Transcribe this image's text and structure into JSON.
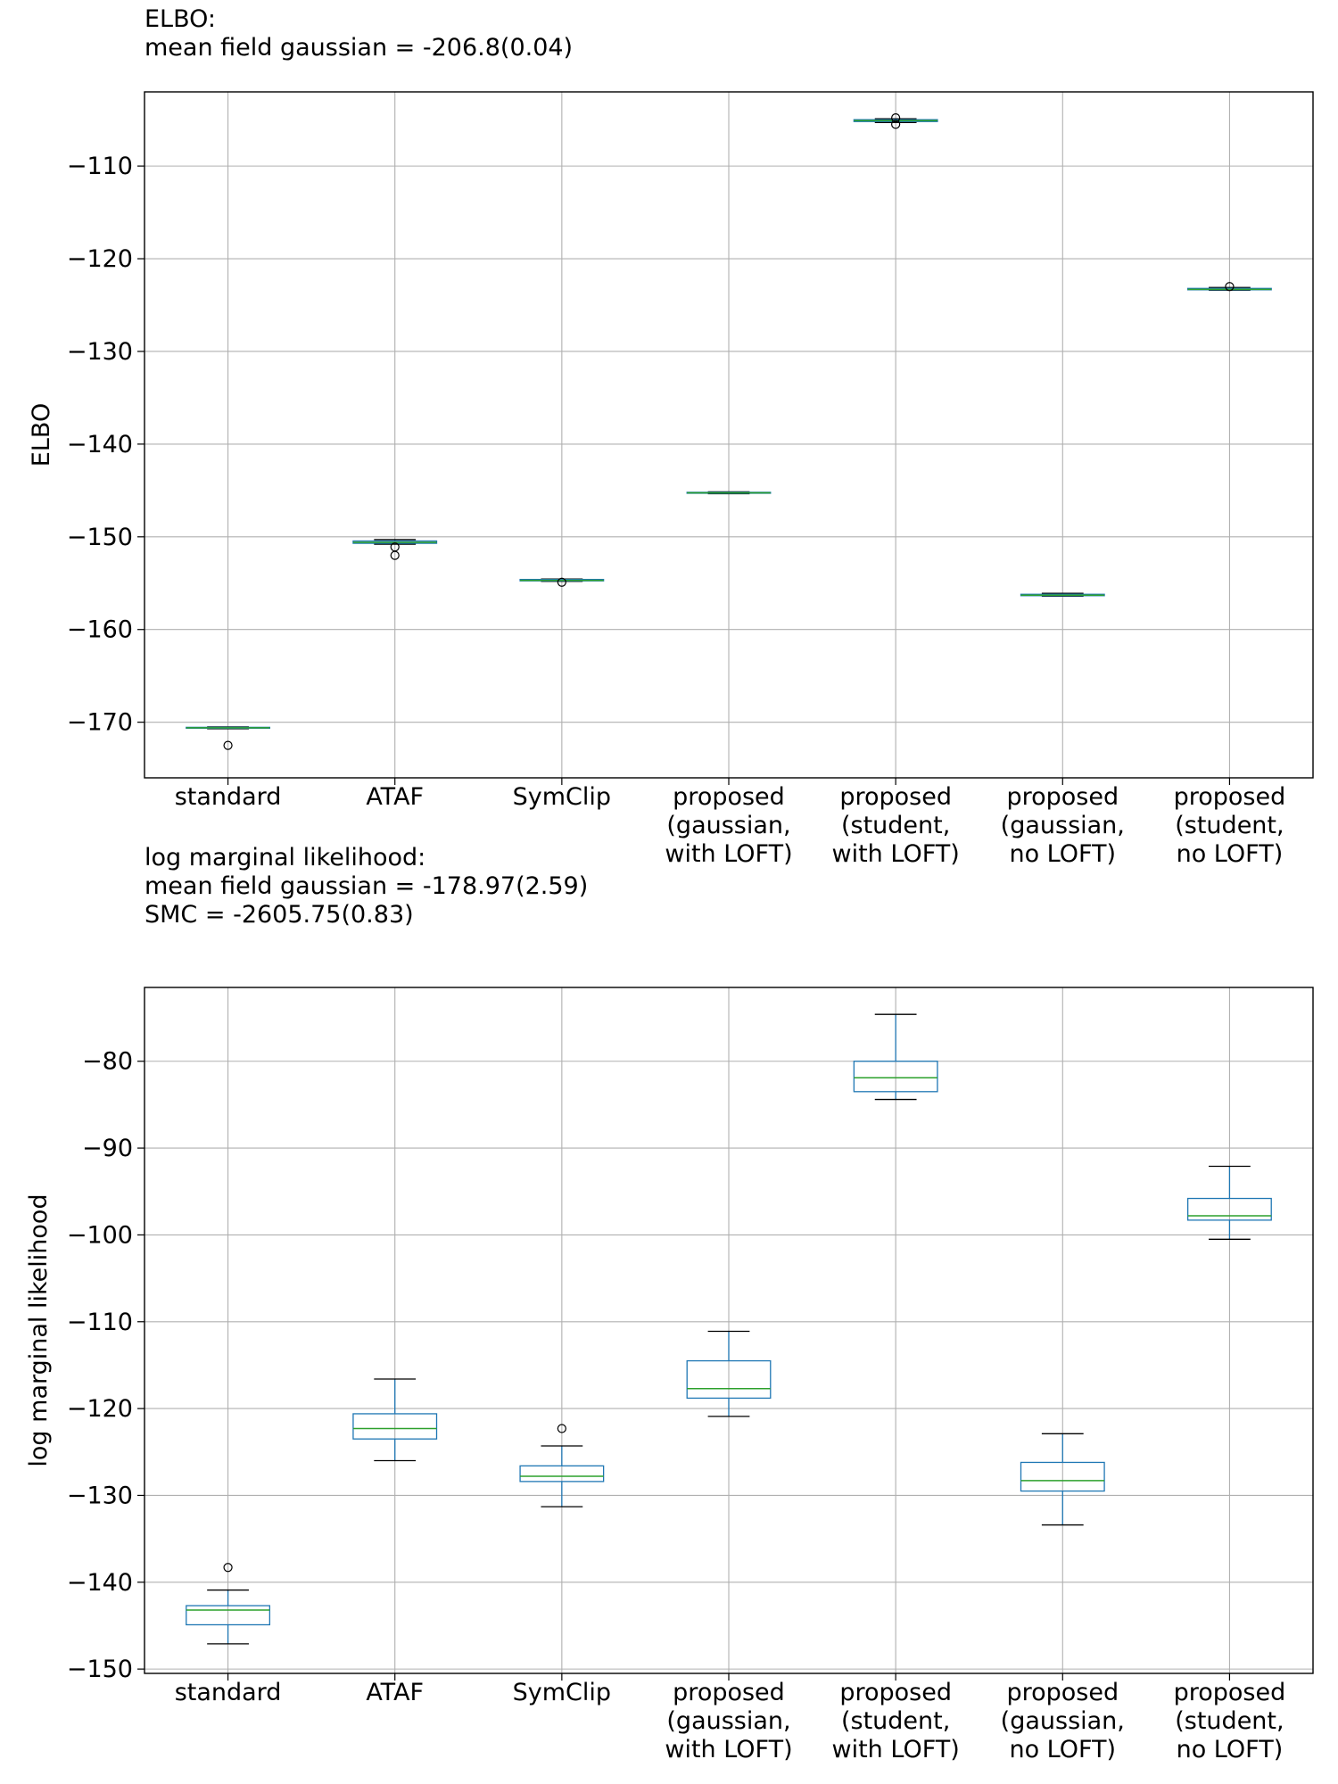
{
  "chart_data": [
    {
      "type": "box",
      "title_lines": [
        "ELBO:",
        "mean field gaussian = -206.8(0.04)"
      ],
      "xlabel": "",
      "ylabel": "ELBO",
      "ylim": [
        -176,
        -102
      ],
      "yticks": [
        -110,
        -120,
        -130,
        -140,
        -150,
        -160,
        -170
      ],
      "ytick_labels": [
        "−110",
        "−120",
        "−130",
        "−140",
        "−150",
        "−160",
        "−170"
      ],
      "categories": [
        [
          "standard"
        ],
        [
          "ATAF"
        ],
        [
          "SymClip"
        ],
        [
          "proposed",
          "(gaussian,",
          "with LOFT)"
        ],
        [
          "proposed",
          "(student,",
          "with LOFT)"
        ],
        [
          "proposed",
          "(gaussian,",
          "no LOFT)"
        ],
        [
          "proposed",
          "(student,",
          "no LOFT)"
        ]
      ],
      "boxes": [
        {
          "whislo": -170.7,
          "q1": -170.65,
          "med": -170.6,
          "q3": -170.55,
          "whishi": -170.5,
          "fliers": [
            -172.5
          ]
        },
        {
          "whislo": -150.8,
          "q1": -150.7,
          "med": -150.6,
          "q3": -150.45,
          "whishi": -150.3,
          "fliers": [
            -151.1,
            -152.0
          ]
        },
        {
          "whislo": -154.8,
          "q1": -154.75,
          "med": -154.7,
          "q3": -154.6,
          "whishi": -154.55,
          "fliers": [
            -154.9
          ]
        },
        {
          "whislo": -145.35,
          "q1": -145.3,
          "med": -145.25,
          "q3": -145.2,
          "whishi": -145.15,
          "fliers": []
        },
        {
          "whislo": -105.3,
          "q1": -105.2,
          "med": -105.1,
          "q3": -105.0,
          "whishi": -104.9,
          "fliers": [
            -104.8,
            -105.5
          ]
        },
        {
          "whislo": -156.4,
          "q1": -156.35,
          "med": -156.3,
          "q3": -156.2,
          "whishi": -156.1,
          "fliers": []
        },
        {
          "whislo": -123.4,
          "q1": -123.35,
          "med": -123.3,
          "q3": -123.2,
          "whishi": -123.1,
          "fliers": [
            -123.0
          ]
        }
      ]
    },
    {
      "type": "box",
      "title_lines": [
        "log marginal likelihood:",
        "mean field gaussian = -178.97(2.59)",
        "SMC = -2605.75(0.83)"
      ],
      "xlabel": "",
      "ylabel": "log marginal likelihood",
      "ylim": [
        -150.5,
        -71.5
      ],
      "yticks": [
        -80,
        -90,
        -100,
        -110,
        -120,
        -130,
        -140,
        -150
      ],
      "ytick_labels": [
        "−80",
        "−90",
        "−100",
        "−110",
        "−120",
        "−130",
        "−140",
        "−150"
      ],
      "categories": [
        [
          "standard"
        ],
        [
          "ATAF"
        ],
        [
          "SymClip"
        ],
        [
          "proposed",
          "(gaussian,",
          "with LOFT)"
        ],
        [
          "proposed",
          "(student,",
          "with LOFT)"
        ],
        [
          "proposed",
          "(gaussian,",
          "no LOFT)"
        ],
        [
          "proposed",
          "(student,",
          "no LOFT)"
        ]
      ],
      "boxes": [
        {
          "whislo": -147.1,
          "q1": -144.9,
          "med": -143.2,
          "q3": -142.7,
          "whishi": -140.9,
          "fliers": [
            -138.3
          ]
        },
        {
          "whislo": -126.0,
          "q1": -123.5,
          "med": -122.3,
          "q3": -120.6,
          "whishi": -116.6,
          "fliers": []
        },
        {
          "whislo": -131.3,
          "q1": -128.4,
          "med": -127.8,
          "q3": -126.6,
          "whishi": -124.3,
          "fliers": [
            -122.3
          ]
        },
        {
          "whislo": -120.9,
          "q1": -118.8,
          "med": -117.7,
          "q3": -114.5,
          "whishi": -111.1,
          "fliers": []
        },
        {
          "whislo": -84.4,
          "q1": -83.5,
          "med": -81.9,
          "q3": -80.0,
          "whishi": -74.6,
          "fliers": []
        },
        {
          "whislo": -133.4,
          "q1": -129.5,
          "med": -128.3,
          "q3": -126.2,
          "whishi": -122.9,
          "fliers": []
        },
        {
          "whislo": -100.5,
          "q1": -98.3,
          "med": -97.8,
          "q3": -95.8,
          "whishi": -92.1,
          "fliers": []
        }
      ]
    }
  ],
  "colors": {
    "box": "#1f77b4",
    "median": "#2ca02c",
    "whisker": "#000000",
    "grid": "#b0b0b0",
    "axes": "#000000"
  }
}
